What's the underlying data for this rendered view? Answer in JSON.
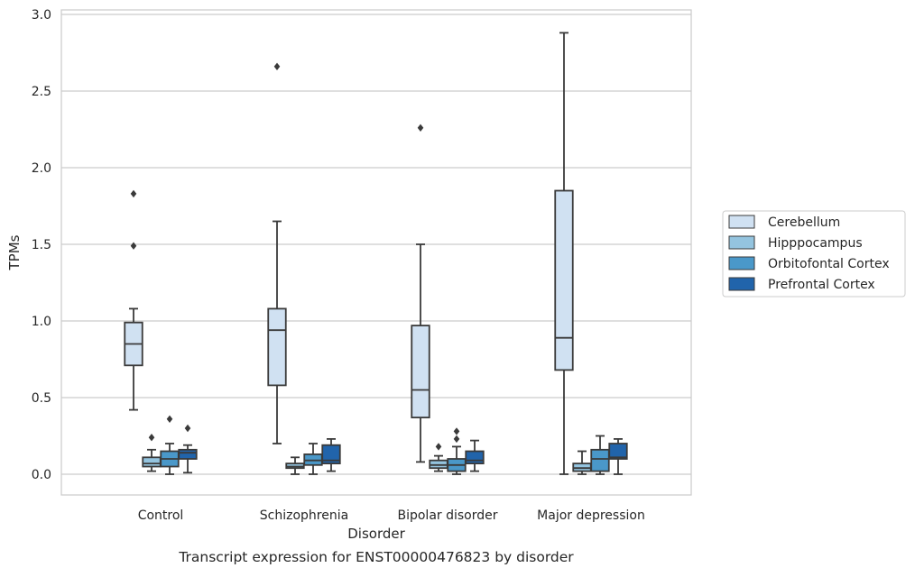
{
  "caption": "Transcript expression for ENST00000476823 by disorder",
  "chart_data": {
    "type": "boxplot",
    "title": "",
    "xlabel": "Disorder",
    "ylabel": "TPMs",
    "ylim": [
      -0.14,
      3.03
    ],
    "yticks": [
      0.0,
      0.5,
      1.0,
      1.5,
      2.0,
      2.5,
      3.0
    ],
    "ytick_labels": [
      "0.0",
      "0.5",
      "1.0",
      "1.5",
      "2.0",
      "2.5",
      "3.0"
    ],
    "grid": "horizontal",
    "legend_placement": "right-outside",
    "categories": [
      "Control",
      "Schizophrenia",
      "Bipolar disorder",
      "Major depression"
    ],
    "series": [
      {
        "name": "Cerebellum",
        "color": "#d0e1f2",
        "boxes": [
          {
            "whisker_low": 0.42,
            "q1": 0.71,
            "median": 0.85,
            "q3": 0.99,
            "whisker_high": 1.08,
            "outliers": [
              1.49,
              1.83
            ]
          },
          {
            "whisker_low": 0.2,
            "q1": 0.58,
            "median": 0.94,
            "q3": 1.08,
            "whisker_high": 1.65,
            "outliers": [
              2.66
            ]
          },
          {
            "whisker_low": 0.08,
            "q1": 0.37,
            "median": 0.55,
            "q3": 0.97,
            "whisker_high": 1.5,
            "outliers": [
              2.26
            ]
          },
          {
            "whisker_low": 0.0,
            "q1": 0.68,
            "median": 0.89,
            "q3": 1.85,
            "whisker_high": 2.88,
            "outliers": []
          }
        ]
      },
      {
        "name": "Hipppocampus",
        "color": "#94c4df",
        "boxes": [
          {
            "whisker_low": 0.02,
            "q1": 0.05,
            "median": 0.07,
            "q3": 0.11,
            "whisker_high": 0.16,
            "outliers": [
              0.24
            ]
          },
          {
            "whisker_low": 0.0,
            "q1": 0.04,
            "median": 0.05,
            "q3": 0.07,
            "whisker_high": 0.11,
            "outliers": []
          },
          {
            "whisker_low": 0.02,
            "q1": 0.04,
            "median": 0.06,
            "q3": 0.09,
            "whisker_high": 0.12,
            "outliers": [
              0.18
            ]
          },
          {
            "whisker_low": 0.0,
            "q1": 0.02,
            "median": 0.04,
            "q3": 0.07,
            "whisker_high": 0.15,
            "outliers": []
          }
        ]
      },
      {
        "name": "Orbitofontal Cortex",
        "color": "#4a98c9",
        "boxes": [
          {
            "whisker_low": 0.0,
            "q1": 0.05,
            "median": 0.1,
            "q3": 0.15,
            "whisker_high": 0.2,
            "outliers": [
              0.36
            ]
          },
          {
            "whisker_low": 0.0,
            "q1": 0.06,
            "median": 0.09,
            "q3": 0.13,
            "whisker_high": 0.2,
            "outliers": []
          },
          {
            "whisker_low": 0.0,
            "q1": 0.02,
            "median": 0.06,
            "q3": 0.1,
            "whisker_high": 0.18,
            "outliers": [
              0.23,
              0.28
            ]
          },
          {
            "whisker_low": 0.0,
            "q1": 0.02,
            "median": 0.1,
            "q3": 0.16,
            "whisker_high": 0.25,
            "outliers": []
          }
        ]
      },
      {
        "name": "Prefrontal Cortex",
        "color": "#2164ab",
        "boxes": [
          {
            "whisker_low": 0.01,
            "q1": 0.1,
            "median": 0.14,
            "q3": 0.16,
            "whisker_high": 0.19,
            "outliers": [
              0.3
            ]
          },
          {
            "whisker_low": 0.02,
            "q1": 0.07,
            "median": 0.09,
            "q3": 0.19,
            "whisker_high": 0.23,
            "outliers": []
          },
          {
            "whisker_low": 0.02,
            "q1": 0.07,
            "median": 0.09,
            "q3": 0.15,
            "whisker_high": 0.22,
            "outliers": []
          },
          {
            "whisker_low": 0.0,
            "q1": 0.1,
            "median": 0.11,
            "q3": 0.2,
            "whisker_high": 0.23,
            "outliers": []
          }
        ]
      }
    ]
  }
}
